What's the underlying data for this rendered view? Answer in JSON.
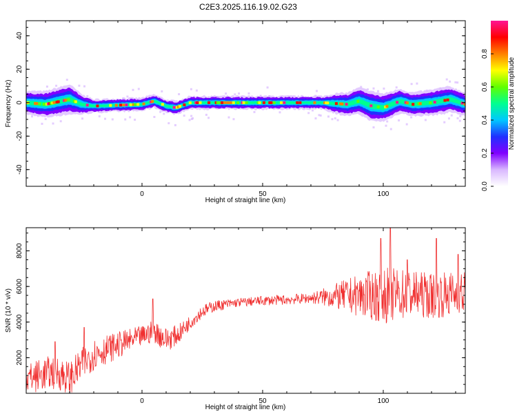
{
  "title": "C2E3.2025.116.19.02.G23",
  "chart_data": [
    {
      "type": "heatmap",
      "xlabel": "Height of straight line (km)",
      "ylabel": "Frequency (Hz)",
      "xlim": [
        -48,
        134
      ],
      "ylim": [
        -50,
        49
      ],
      "xticks": [
        0,
        50,
        100
      ],
      "yticks": [
        -40,
        -20,
        0,
        20,
        40
      ],
      "colorbar": {
        "label": "Normalized spectral amplitude",
        "range": [
          0,
          1
        ],
        "ticks": [
          "0.0",
          "0.2",
          "0.4",
          "0.6",
          "0.8"
        ],
        "colormap": [
          "#ffffff",
          "#d9b8ff",
          "#8000ff",
          "#2030ff",
          "#00c8ff",
          "#00ff90",
          "#60ff00",
          "#ffff00",
          "#ff8000",
          "#ff0000",
          "#ff1493"
        ]
      },
      "ridge_frequency": [
        {
          "x": -48,
          "y": 0
        },
        {
          "x": -40,
          "y": -1
        },
        {
          "x": -30,
          "y": 2
        },
        {
          "x": -25,
          "y": -1
        },
        {
          "x": -20,
          "y": -2
        },
        {
          "x": 0,
          "y": -1
        },
        {
          "x": 5,
          "y": 1
        },
        {
          "x": 10,
          "y": -2
        },
        {
          "x": 14,
          "y": -3
        },
        {
          "x": 20,
          "y": 0
        },
        {
          "x": 75,
          "y": 0
        },
        {
          "x": 85,
          "y": -1
        },
        {
          "x": 90,
          "y": 1
        },
        {
          "x": 95,
          "y": -2
        },
        {
          "x": 100,
          "y": -3
        },
        {
          "x": 107,
          "y": 1
        },
        {
          "x": 112,
          "y": -1
        },
        {
          "x": 120,
          "y": 0
        },
        {
          "x": 128,
          "y": 2
        },
        {
          "x": 134,
          "y": -1
        }
      ],
      "band_halfwidth_hz": [
        {
          "x": -48,
          "w": 7
        },
        {
          "x": -30,
          "w": 9
        },
        {
          "x": -25,
          "w": 6
        },
        {
          "x": -20,
          "w": 4
        },
        {
          "x": 75,
          "w": 4
        },
        {
          "x": 80,
          "w": 6
        },
        {
          "x": 95,
          "w": 9
        },
        {
          "x": 110,
          "w": 7
        },
        {
          "x": 125,
          "w": 8
        },
        {
          "x": 134,
          "w": 7
        }
      ]
    },
    {
      "type": "line",
      "xlabel": "Height of straight line (km)",
      "ylabel": "SNR (10 * v/v)",
      "xlim": [
        -48,
        134
      ],
      "ylim": [
        0,
        9300
      ],
      "xticks": [
        0,
        50,
        100
      ],
      "yticks": [
        2000,
        4000,
        6000,
        8000
      ],
      "color": "#f03030",
      "series": [
        {
          "trend": [
            {
              "x": -48,
              "y": 800
            },
            {
              "x": -40,
              "y": 1100
            },
            {
              "x": -35,
              "y": 1200
            },
            {
              "x": -30,
              "y": 800
            },
            {
              "x": -25,
              "y": 1600
            },
            {
              "x": -20,
              "y": 2200
            },
            {
              "x": -10,
              "y": 2700
            },
            {
              "x": 0,
              "y": 3200
            },
            {
              "x": 5,
              "y": 3500
            },
            {
              "x": 10,
              "y": 3000
            },
            {
              "x": 15,
              "y": 3300
            },
            {
              "x": 20,
              "y": 4000
            },
            {
              "x": 25,
              "y": 4600
            },
            {
              "x": 30,
              "y": 4900
            },
            {
              "x": 40,
              "y": 5100
            },
            {
              "x": 50,
              "y": 5200
            },
            {
              "x": 60,
              "y": 5250
            },
            {
              "x": 70,
              "y": 5350
            },
            {
              "x": 80,
              "y": 5450
            },
            {
              "x": 90,
              "y": 5500
            },
            {
              "x": 100,
              "y": 5500
            },
            {
              "x": 110,
              "y": 5600
            },
            {
              "x": 120,
              "y": 5500
            },
            {
              "x": 134,
              "y": 5600
            }
          ],
          "spread": [
            {
              "x": -48,
              "y": 900
            },
            {
              "x": -30,
              "y": 1000
            },
            {
              "x": -20,
              "y": 900
            },
            {
              "x": 0,
              "y": 600
            },
            {
              "x": 10,
              "y": 700
            },
            {
              "x": 20,
              "y": 400
            },
            {
              "x": 40,
              "y": 250
            },
            {
              "x": 70,
              "y": 300
            },
            {
              "x": 80,
              "y": 700
            },
            {
              "x": 90,
              "y": 1200
            },
            {
              "x": 100,
              "y": 1600
            },
            {
              "x": 115,
              "y": 1300
            },
            {
              "x": 134,
              "y": 1300
            }
          ],
          "peaks": [
            {
              "x": -36,
              "y": 2900
            },
            {
              "x": -24,
              "y": 3700
            },
            {
              "x": 4.5,
              "y": 5300
            },
            {
              "x": 99,
              "y": 8700
            },
            {
              "x": 103,
              "y": 9300
            },
            {
              "x": 110,
              "y": 7500
            },
            {
              "x": 122,
              "y": 8700
            },
            {
              "x": 131,
              "y": 7800
            }
          ]
        }
      ]
    }
  ]
}
